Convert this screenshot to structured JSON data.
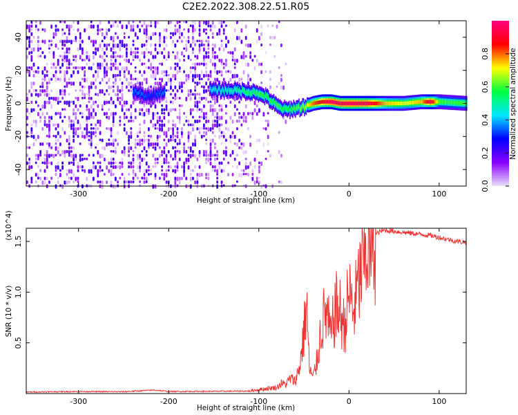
{
  "title": "C2E2.2022.308.22.51.R05",
  "chart_data": [
    {
      "type": "heatmap",
      "xlabel": "Height of straight line (km)",
      "ylabel": "Frequency (Hz)",
      "xlim": [
        -358,
        130
      ],
      "ylim": [
        -50,
        50
      ],
      "x_ticks": [
        -300,
        -200,
        -100,
        0,
        100
      ],
      "y_ticks": [
        -40,
        -20,
        0,
        20,
        40
      ],
      "colorbar": {
        "label": "Normalized spectral amplitude",
        "range": [
          0.0,
          1.0
        ],
        "ticks": [
          "0.0",
          "0.2",
          "0.4",
          "0.6",
          "0.8"
        ],
        "colors": [
          "#e8e0f8",
          "#8a00ff",
          "#0000ff",
          "#00e8ff",
          "#00ff40",
          "#ffff00",
          "#ff0000",
          "#ff0080"
        ]
      },
      "noise_region_x": [
        -358,
        -100
      ],
      "noise_amplitude": 0.15,
      "ridge": {
        "x": [
          -240,
          -230,
          -220,
          -210,
          -150,
          -130,
          -110,
          -100,
          -90,
          -80,
          -70,
          -60,
          -50,
          -40,
          -30,
          -20,
          -10,
          0,
          20,
          40,
          60,
          80,
          90,
          100,
          130
        ],
        "freq_hz": [
          7,
          5,
          4,
          7,
          8,
          8,
          7,
          6,
          3,
          -2,
          -4,
          -3,
          -2,
          0,
          1,
          1,
          0,
          0,
          0,
          0,
          0,
          1,
          1,
          1,
          0
        ],
        "amplitude": [
          0.35,
          0.35,
          0.3,
          0.35,
          0.45,
          0.5,
          0.55,
          0.6,
          0.55,
          0.6,
          0.55,
          0.6,
          0.65,
          0.8,
          0.9,
          0.95,
          0.95,
          0.95,
          0.95,
          0.75,
          0.7,
          0.75,
          0.95,
          0.6,
          0.6
        ]
      },
      "grid": false
    },
    {
      "type": "line",
      "xlabel": "Height of straight line (km)",
      "ylabel": "SNR (10 * v/v)",
      "y_multiplier": "(x10^4)",
      "xlim": [
        -358,
        130
      ],
      "ylim": [
        0,
        16300
      ],
      "x_ticks": [
        -300,
        -200,
        -100,
        0,
        100
      ],
      "y_ticks": [
        5000,
        10000,
        15000
      ],
      "y_tick_labels": [
        "0.5",
        "1.0",
        "1.5"
      ],
      "series": [
        {
          "color": "#ee3333",
          "x": [
            -358,
            -300,
            -250,
            -215,
            -200,
            -150,
            -110,
            -100,
            -90,
            -80,
            -75,
            -70,
            -65,
            -60,
            -55,
            -50,
            -47,
            -44,
            -40,
            -36,
            -30,
            -25,
            -20,
            -15,
            -10,
            -5,
            0,
            5,
            10,
            15,
            20,
            25,
            30,
            35,
            40,
            50,
            60,
            70,
            80,
            90,
            100,
            110,
            120,
            130
          ],
          "values": [
            150,
            200,
            180,
            350,
            200,
            220,
            250,
            400,
            500,
            600,
            1000,
            900,
            1500,
            1200,
            2500,
            6000,
            9000,
            2500,
            1500,
            3000,
            7000,
            8000,
            5500,
            8500,
            8000,
            6500,
            10000,
            8000,
            10500,
            12500,
            14500,
            15000,
            15700,
            16000,
            16100,
            16000,
            15900,
            15800,
            15700,
            15600,
            15400,
            15200,
            15000,
            14900
          ]
        }
      ],
      "grid": false
    }
  ]
}
